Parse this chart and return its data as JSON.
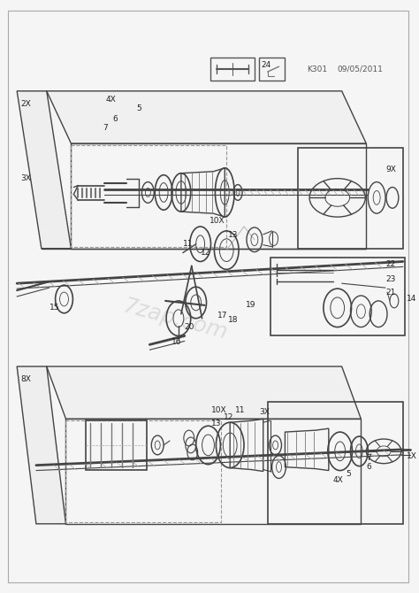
{
  "bg_color": "#f5f5f5",
  "line_color": "#444444",
  "light_line": "#888888",
  "dashed_color": "#777777",
  "text_color": "#222222",
  "header_k301": "K301",
  "header_date": "09/05/2011",
  "watermark": "7zap.com",
  "fig_width": 4.74,
  "fig_height": 6.7,
  "dpi": 100,
  "label_fs": 6.5,
  "small_fs": 6.0
}
